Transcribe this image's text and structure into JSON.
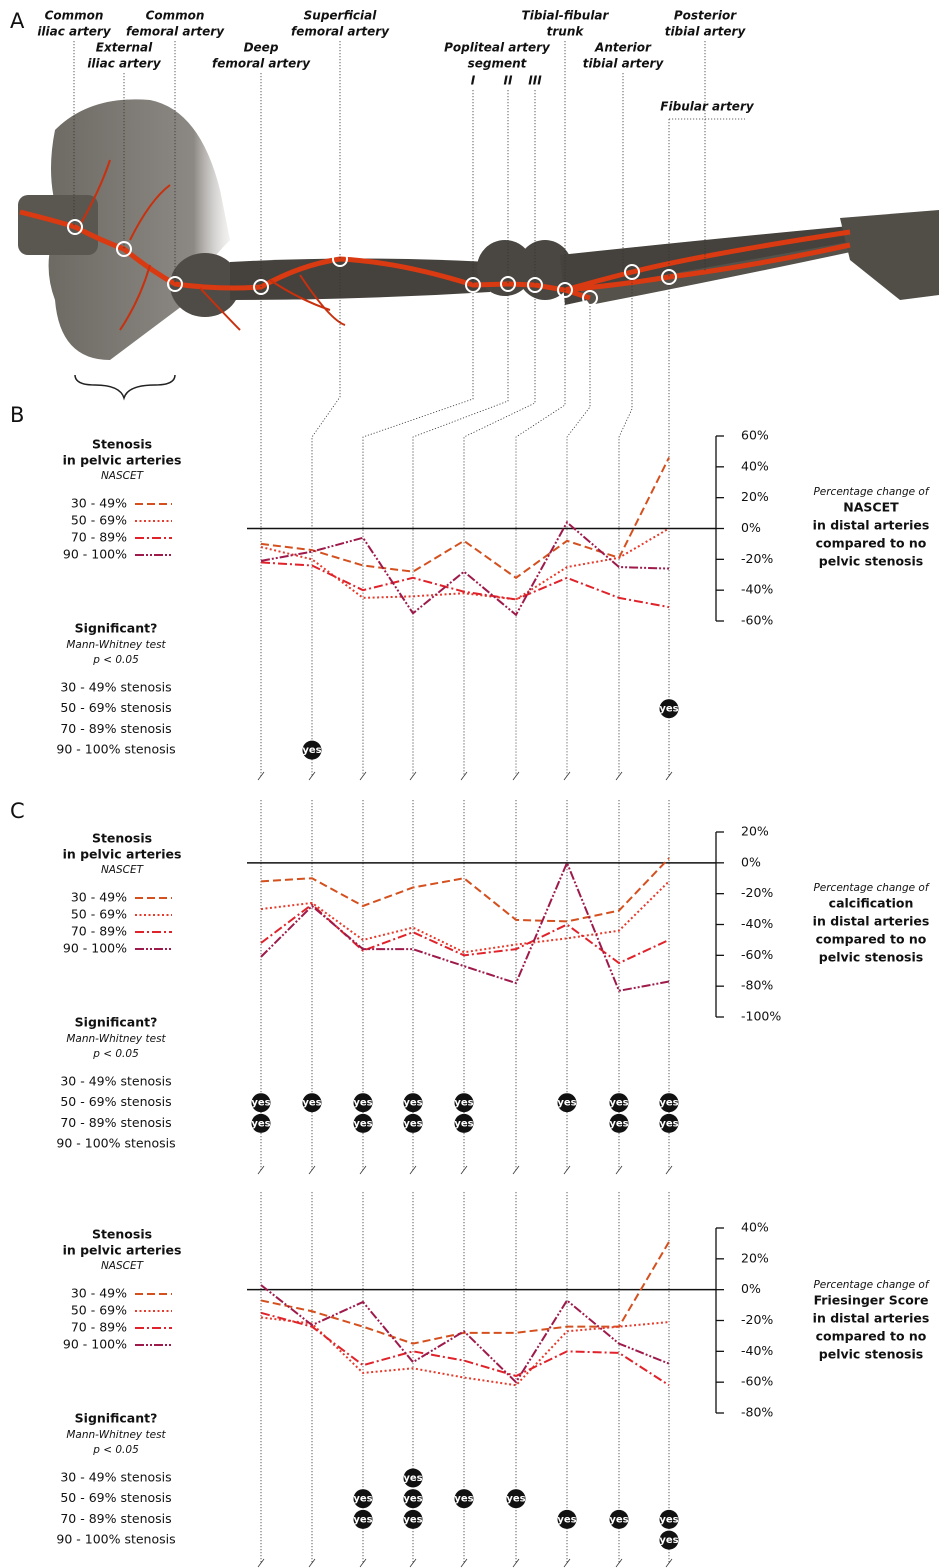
{
  "anatomy": {
    "labels": [
      {
        "lines": [
          "Common",
          "iliac artery"
        ]
      },
      {
        "lines": [
          "External",
          "iliac artery"
        ]
      },
      {
        "lines": [
          "Common",
          "femoral artery"
        ]
      },
      {
        "lines": [
          "Deep",
          "femoral artery"
        ]
      },
      {
        "lines": [
          "Superficial",
          "femoral artery"
        ]
      },
      {
        "lines": [
          "Popliteal artery",
          "segment"
        ]
      },
      {
        "lines": [
          "Tibial-fibular",
          "trunk"
        ]
      },
      {
        "lines": [
          "Anterior",
          "tibial artery"
        ]
      },
      {
        "lines": [
          "Posterior",
          "tibial artery"
        ]
      },
      {
        "lines": [
          "Fibular artery"
        ]
      }
    ],
    "segments": [
      "I",
      "II",
      "III"
    ]
  },
  "chart_data": [
    {
      "type": "line",
      "panel": "A",
      "legend_title": [
        "Stenosis",
        "in pelvic arteries"
      ],
      "legend_subtitle": "NASCET",
      "y_label": [
        "Percentage change of",
        "NASCET",
        "in distal arteries",
        "compared to no",
        "pelvic stenosis"
      ],
      "ylim": [
        -60,
        60
      ],
      "yticks": [
        {
          "value": 60,
          "label": "60%"
        },
        {
          "value": 40,
          "label": "40%"
        },
        {
          "value": 20,
          "label": "20%"
        },
        {
          "value": 0,
          "label": "0%"
        },
        {
          "value": -20,
          "label": "-20%"
        },
        {
          "value": -40,
          "label": "-40%"
        },
        {
          "value": -60,
          "label": "-60%"
        }
      ],
      "series": [
        {
          "name": "30 - 49%",
          "color": "#d4501e",
          "values": [
            -10,
            -14,
            -24,
            -28,
            -8,
            -32,
            -8,
            -19,
            46
          ]
        },
        {
          "name": "50 - 69%",
          "color": "#e53b2c",
          "values": [
            -12,
            -20,
            -45,
            -44,
            -42,
            -46,
            -25,
            -19,
            0
          ]
        },
        {
          "name": "70 - 89%",
          "color": "#e0222a",
          "values": [
            -22,
            -24,
            -40,
            -32,
            -41,
            -46,
            -32,
            -45,
            -51
          ]
        },
        {
          "name": "90 - 100%",
          "color": "#9e1a4b",
          "values": [
            -21,
            -15,
            -6,
            -55,
            -28,
            -56,
            4,
            -25,
            -26
          ]
        }
      ],
      "significance": {
        "title": "Significant?",
        "test": "Mann-Whitney test",
        "threshold": "p < 0.05",
        "rows": [
          "30 - 49% stenosis",
          "50 - 69% stenosis",
          "70 - 89% stenosis",
          "90 - 100% stenosis"
        ],
        "values": [
          [
            null,
            null,
            null,
            null,
            null,
            null,
            null,
            null,
            null
          ],
          [
            null,
            null,
            null,
            null,
            null,
            null,
            null,
            null,
            "yes"
          ],
          [
            null,
            null,
            null,
            null,
            null,
            null,
            null,
            null,
            null
          ],
          [
            null,
            "yes",
            null,
            null,
            null,
            null,
            null,
            null,
            null
          ]
        ]
      }
    },
    {
      "type": "line",
      "panel": "B",
      "legend_title": [
        "Stenosis",
        "in pelvic arteries"
      ],
      "legend_subtitle": "NASCET",
      "y_label": [
        "Percentage change of",
        "calcification",
        "in distal arteries",
        "compared to no",
        "pelvic stenosis"
      ],
      "ylim": [
        -100,
        20
      ],
      "yticks": [
        {
          "value": 20,
          "label": "20%"
        },
        {
          "value": 0,
          "label": "0%"
        },
        {
          "value": -20,
          "label": "-20%"
        },
        {
          "value": -40,
          "label": "-40%"
        },
        {
          "value": -60,
          "label": "-60%"
        },
        {
          "value": -80,
          "label": "-80%"
        },
        {
          "value": -100,
          "label": "-100%"
        }
      ],
      "series": [
        {
          "name": "30 - 49%",
          "color": "#d4501e",
          "values": [
            -12,
            -10,
            -28,
            -16,
            -10,
            -37,
            -38,
            -31,
            3
          ]
        },
        {
          "name": "50 - 69%",
          "color": "#e53b2c",
          "values": [
            -30,
            -26,
            -50,
            -42,
            -58,
            -53,
            -49,
            -44,
            -12
          ]
        },
        {
          "name": "70 - 89%",
          "color": "#e0222a",
          "values": [
            -52,
            -27,
            -57,
            -45,
            -60,
            -56,
            -40,
            -65,
            -50
          ]
        },
        {
          "name": "90 - 100%",
          "color": "#9e1a4b",
          "values": [
            -61,
            -28,
            -56,
            -56,
            -67,
            -78,
            0,
            -83,
            -77
          ]
        }
      ],
      "significance": {
        "title": "Significant?",
        "test": "Mann-Whitney test",
        "threshold": "p < 0.05",
        "rows": [
          "30 - 49% stenosis",
          "50 - 69% stenosis",
          "70 - 89% stenosis",
          "90 - 100% stenosis"
        ],
        "values": [
          [
            null,
            null,
            null,
            null,
            null,
            null,
            null,
            null,
            null
          ],
          [
            "yes",
            "yes",
            "yes",
            "yes",
            "yes",
            null,
            "yes",
            "yes",
            "yes"
          ],
          [
            "yes",
            null,
            "yes",
            "yes",
            "yes",
            null,
            null,
            "yes",
            "yes"
          ],
          [
            null,
            null,
            null,
            null,
            null,
            null,
            null,
            null,
            null
          ]
        ]
      }
    },
    {
      "type": "line",
      "panel": "C",
      "legend_title": [
        "Stenosis",
        "in pelvic arteries"
      ],
      "legend_subtitle": "NASCET",
      "y_label": [
        "Percentage change of",
        "Friesinger Score",
        "in distal arteries",
        "compared to no",
        "pelvic stenosis"
      ],
      "ylim": [
        -80,
        40
      ],
      "yticks": [
        {
          "value": 40,
          "label": "40%"
        },
        {
          "value": 20,
          "label": "20%"
        },
        {
          "value": 0,
          "label": "0%"
        },
        {
          "value": -20,
          "label": "-20%"
        },
        {
          "value": -40,
          "label": "-40%"
        },
        {
          "value": -60,
          "label": "-60%"
        },
        {
          "value": -80,
          "label": "-80%"
        }
      ],
      "series": [
        {
          "name": "30 - 49%",
          "color": "#d4501e",
          "values": [
            -7,
            -14,
            -24,
            -35,
            -28,
            -28,
            -24,
            -24,
            31
          ]
        },
        {
          "name": "50 - 69%",
          "color": "#e53b2c",
          "values": [
            -18,
            -22,
            -54,
            -51,
            -57,
            -62,
            -27,
            -24,
            -21
          ]
        },
        {
          "name": "70 - 89%",
          "color": "#e0222a",
          "values": [
            -15,
            -24,
            -49,
            -40,
            -46,
            -56,
            -40,
            -41,
            -62
          ]
        },
        {
          "name": "90 - 100%",
          "color": "#9e1a4b",
          "values": [
            3,
            -23,
            -8,
            -47,
            -27,
            -60,
            -7,
            -35,
            -48
          ]
        }
      ],
      "significance": {
        "title": "Significant?",
        "test": "Mann-Whitney test",
        "threshold": "p < 0.05",
        "rows": [
          "30 - 49% stenosis",
          "50 - 69% stenosis",
          "70 - 89% stenosis",
          "90 - 100% stenosis"
        ],
        "values": [
          [
            null,
            null,
            null,
            "yes",
            null,
            null,
            null,
            null,
            null
          ],
          [
            null,
            null,
            "yes",
            "yes",
            "yes",
            "yes",
            null,
            null,
            null
          ],
          [
            null,
            null,
            "yes",
            "yes",
            null,
            null,
            "yes",
            "yes",
            "yes"
          ],
          [
            null,
            null,
            null,
            null,
            null,
            null,
            null,
            null,
            "yes"
          ]
        ]
      }
    }
  ]
}
